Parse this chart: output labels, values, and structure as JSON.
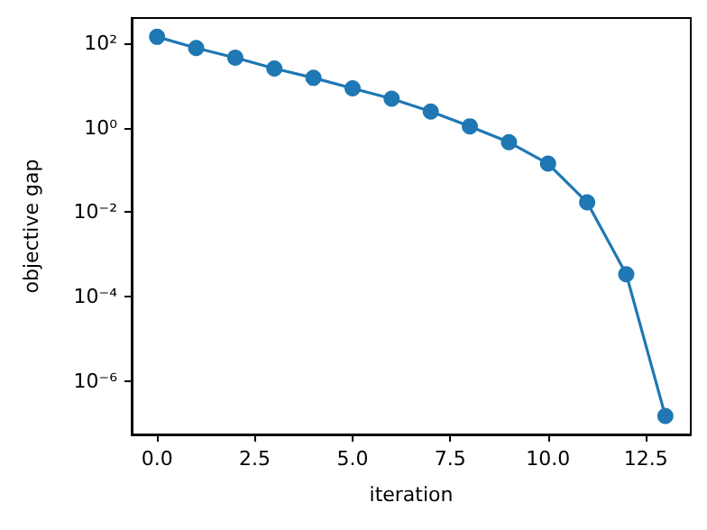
{
  "chart_data": {
    "type": "line",
    "xlabel": "iteration",
    "ylabel": "objective gap",
    "x": [
      0,
      1,
      2,
      3,
      4,
      5,
      6,
      7,
      8,
      9,
      10,
      11,
      12,
      13
    ],
    "series": [
      {
        "color": "#1f77b4",
        "values": [
          140,
          76,
          45,
          25,
          15,
          8.5,
          4.8,
          2.4,
          1.07,
          0.45,
          0.14,
          0.017,
          0.00034,
          1.5e-07
        ]
      }
    ],
    "xlim": [
      -0.65,
      13.65
    ],
    "ylim": [
      5.5e-08,
      390
    ],
    "xticks": [
      {
        "value": 0,
        "label": "0.0"
      },
      {
        "value": 2.5,
        "label": "2.5"
      },
      {
        "value": 5,
        "label": "5.0"
      },
      {
        "value": 7.5,
        "label": "7.5"
      },
      {
        "value": 10,
        "label": "10.0"
      },
      {
        "value": 12.5,
        "label": "12.5"
      }
    ],
    "yticks": [
      {
        "value": 1e-06,
        "label": "10⁻⁶"
      },
      {
        "value": 0.0001,
        "label": "10⁻⁴"
      },
      {
        "value": 0.01,
        "label": "10⁻²"
      },
      {
        "value": 1,
        "label": "10⁰"
      },
      {
        "value": 100,
        "label": "10²"
      }
    ],
    "log": "y",
    "grid": false,
    "marker": "circle",
    "line_style": "solid"
  }
}
